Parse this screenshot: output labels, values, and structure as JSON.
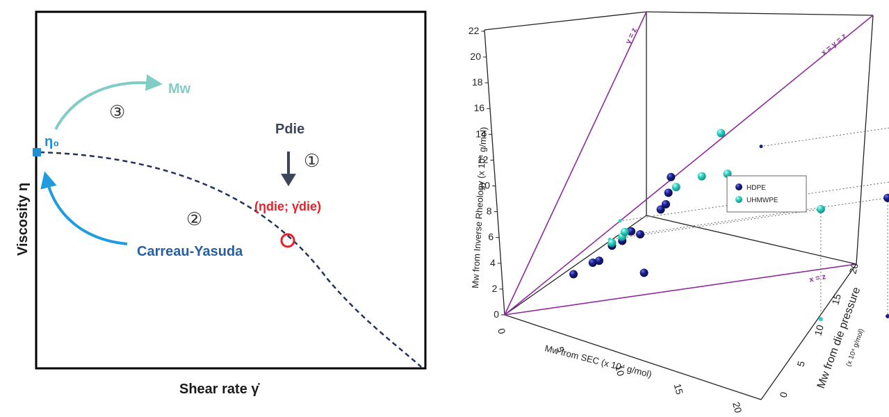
{
  "left_panel": {
    "xlabel": "Shear rate γ̇",
    "ylabel": "Viscosity η",
    "eta0": "η₀",
    "mw": "Mw",
    "pdie": "Pdie",
    "eta_die": "(ηdie; γ̇die)",
    "carreau": "Carreau-Yasuda",
    "step1": "①",
    "step2": "②",
    "step3": "③"
  },
  "chart_data": [
    {
      "type": "line",
      "title": "",
      "xlabel": "Shear rate γ̇",
      "ylabel": "Viscosity η",
      "series": [
        {
          "name": "Carreau-Yasuda",
          "style": "dashed",
          "x": [
            0,
            0.07,
            0.14,
            0.21,
            0.28,
            0.36,
            0.43,
            0.5,
            0.57,
            0.64,
            0.71,
            0.79,
            0.86,
            0.93,
            1.0
          ],
          "y": [
            1.0,
            0.995,
            0.982,
            0.961,
            0.932,
            0.895,
            0.851,
            0.799,
            0.739,
            0.672,
            0.597,
            0.514,
            0.424,
            0.326,
            0.221
          ]
        }
      ],
      "points": [
        {
          "label": "η₀",
          "x": 0,
          "y": 1.0,
          "marker": "square",
          "color": "#1f8fd6"
        },
        {
          "label": "(ηdie; γ̇die)",
          "x": 0.64,
          "y": 0.672,
          "marker": "open-circle",
          "color": "#e8202a"
        }
      ]
    },
    {
      "type": "scatter",
      "title": "",
      "xlabel": "Mw from SEC (x 10⁴ g/mol)",
      "ylabel": "Mw from Inverse Rheology (x 10⁴ g/mol)",
      "zlabel": "Mw from die pressure",
      "zlabel_unit": "(x 10⁴ g/mol)",
      "xlim": [
        0,
        20
      ],
      "ylim": [
        0,
        22
      ],
      "zlim": [
        0,
        20
      ],
      "x_ticks": [
        "0",
        "5",
        "10",
        "15",
        "20"
      ],
      "y_ticks": [
        "0",
        "2",
        "4",
        "6",
        "8",
        "10",
        "12",
        "14",
        "16",
        "18",
        "20",
        "22"
      ],
      "z_ticks": [
        "0",
        "5",
        "10",
        "15",
        "20"
      ],
      "lines": [
        "y = z",
        "x = y = z",
        "x = z"
      ],
      "legend": {
        "position": "right",
        "entries": [
          "HDPE",
          "UHMWPE"
        ]
      },
      "series": [
        {
          "name": "HDPE",
          "color": "#1a1f8c",
          "points": [
            [
              4.0,
              4.0,
              1.0
            ],
            [
              6.0,
              5.6,
              1.0
            ],
            [
              5.5,
              5.3,
              1.0
            ],
            [
              7.0,
              7.0,
              1.0
            ],
            [
              7.8,
              7.6,
              1.0
            ],
            [
              8.5,
              8.5,
              1.0
            ],
            [
              9.2,
              8.5,
              1.0
            ],
            [
              10.8,
              10.8,
              1.0
            ],
            [
              11.2,
              11.3,
              1.0
            ],
            [
              11.4,
              12.2,
              1.0
            ],
            [
              11.6,
              13.4,
              1.0
            ],
            [
              9.5,
              5.8,
              1.0
            ],
            [
              9.3,
              8.6,
              15.0
            ],
            [
              20.0,
              18.4,
              20.0
            ]
          ]
        },
        {
          "name": "UHMWPE",
          "color": "#2fd1c1",
          "points": [
            [
              7.0,
              7.2,
              1.0
            ],
            [
              7.8,
              7.9,
              1.0
            ],
            [
              8.0,
              8.3,
              1.0
            ],
            [
              12.0,
              12.8,
              1.0
            ],
            [
              14.0,
              14.2,
              1.0
            ],
            [
              15.5,
              17.8,
              1.0
            ],
            [
              16.0,
              15.0,
              1.0
            ],
            [
              8.2,
              8.0,
              12.0
            ],
            [
              9.0,
              9.6,
              19.0
            ]
          ]
        }
      ]
    }
  ]
}
